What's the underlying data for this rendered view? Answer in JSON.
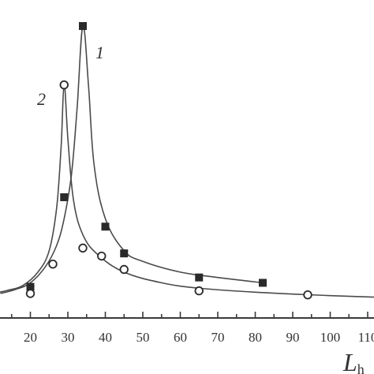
{
  "chart_data": {
    "type": "scatter",
    "xlabel": "L",
    "xlabel_subscript_fragment": "h",
    "xlim": [
      10,
      115
    ],
    "ylim": [
      0,
      100
    ],
    "x_ticks": [
      20,
      30,
      40,
      50,
      60,
      70,
      80,
      90,
      100,
      110
    ],
    "x_tick_labels": [
      "20",
      "30",
      "40",
      "50",
      "60",
      "70",
      "80",
      "90",
      "100",
      "110"
    ],
    "grid": false,
    "colors": {
      "axis": "#3a3a3a",
      "curve": "#4a4a4a",
      "marker": "#2a2a2a"
    },
    "series": [
      {
        "label": "1",
        "marker": "square",
        "points": [
          {
            "x": 20,
            "y": 2.5
          },
          {
            "x": 29,
            "y": 36
          },
          {
            "x": 34,
            "y": 100
          },
          {
            "x": 40,
            "y": 25
          },
          {
            "x": 45,
            "y": 15
          },
          {
            "x": 65,
            "y": 6
          },
          {
            "x": 82,
            "y": 4
          }
        ],
        "fit_curve": [
          [
            12,
            0
          ],
          [
            16,
            1.5
          ],
          [
            20,
            4
          ],
          [
            24,
            10
          ],
          [
            27,
            18
          ],
          [
            29,
            28
          ],
          [
            31,
            45
          ],
          [
            32.5,
            70
          ],
          [
            34,
            100
          ],
          [
            35.5,
            78
          ],
          [
            37,
            48
          ],
          [
            40,
            28
          ],
          [
            45,
            16
          ],
          [
            50,
            12
          ],
          [
            60,
            8
          ],
          [
            70,
            6
          ],
          [
            82,
            4
          ]
        ]
      },
      {
        "label": "2",
        "marker": "circle",
        "points": [
          {
            "x": 20,
            "y": 0
          },
          {
            "x": 26,
            "y": 11
          },
          {
            "x": 29,
            "y": 78
          },
          {
            "x": 34,
            "y": 17
          },
          {
            "x": 39,
            "y": 14
          },
          {
            "x": 45,
            "y": 9
          },
          {
            "x": 65,
            "y": 1
          },
          {
            "x": 94,
            "y": -0.5
          }
        ],
        "fit_curve": [
          [
            10,
            0
          ],
          [
            14,
            1.2
          ],
          [
            18,
            3
          ],
          [
            22,
            8
          ],
          [
            25,
            16
          ],
          [
            27,
            32
          ],
          [
            28.2,
            55
          ],
          [
            29,
            78
          ],
          [
            30,
            58
          ],
          [
            31.5,
            35
          ],
          [
            34,
            22
          ],
          [
            38,
            14.5
          ],
          [
            45,
            8
          ],
          [
            55,
            4
          ],
          [
            65,
            2
          ],
          [
            80,
            0.5
          ],
          [
            100,
            -0.8
          ],
          [
            115,
            -1.5
          ]
        ]
      }
    ]
  }
}
